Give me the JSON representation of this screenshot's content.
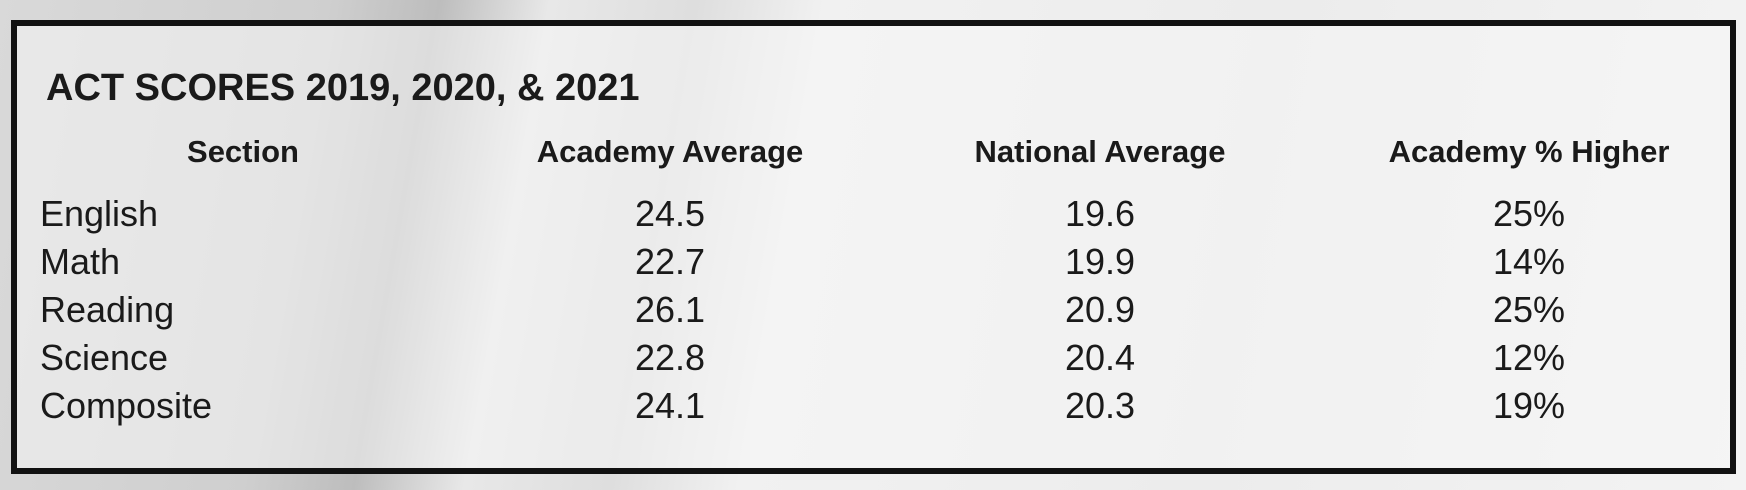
{
  "title": "ACT SCORES 2019, 2020, & 2021",
  "table": {
    "header": [
      "Section",
      "Academy Average",
      "National Average",
      "Academy % Higher"
    ],
    "rows": [
      [
        "English",
        "24.5",
        "19.6",
        "25%"
      ],
      [
        "Math",
        "22.7",
        "19.9",
        "14%"
      ],
      [
        "Reading",
        "26.1",
        "20.9",
        "25%"
      ],
      [
        "Science",
        "22.8",
        "20.4",
        "12%"
      ],
      [
        "Composite",
        "24.1",
        "20.3",
        "19%"
      ]
    ]
  }
}
